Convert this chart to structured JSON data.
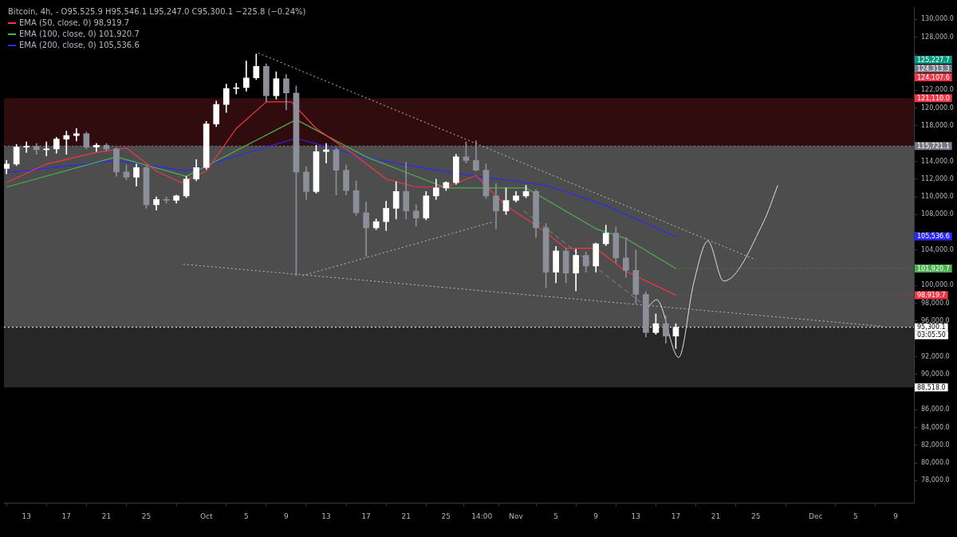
{
  "chart_data": {
    "type": "candlestick",
    "title": "Bitcoin, 4h, -",
    "subtitle": "O95,525.9 H95,546.1 L95,247.0 C95,300.1 −225.8 (−0.24%)",
    "xlim": [
      "--09-10T18:00",
      "--12-10T20:00"
    ],
    "xticks": [
      {
        "value": "--09-13",
        "label": "13"
      },
      {
        "value": "--09-17",
        "label": "17"
      },
      {
        "value": "--09-21",
        "label": "21"
      },
      {
        "value": "--09-25",
        "label": "25"
      },
      {
        "value": "--10-01",
        "label": "Oct"
      },
      {
        "value": "--10-05",
        "label": "5"
      },
      {
        "value": "--10-09",
        "label": "9"
      },
      {
        "value": "--10-13",
        "label": "13"
      },
      {
        "value": "--10-17",
        "label": "17"
      },
      {
        "value": "--10-21",
        "label": "21"
      },
      {
        "value": "--10-25",
        "label": "25"
      },
      {
        "value": "--10-28T14:00",
        "label": "14:00"
      },
      {
        "value": "--11-01",
        "label": "Nov"
      },
      {
        "value": "--11-05",
        "label": "5"
      },
      {
        "value": "--11-09",
        "label": "9"
      },
      {
        "value": "--11-13",
        "label": "13"
      },
      {
        "value": "--11-17",
        "label": "17"
      },
      {
        "value": "--11-21",
        "label": "21"
      },
      {
        "value": "--11-25",
        "label": "25"
      },
      {
        "value": "--12-01",
        "label": "Dec"
      },
      {
        "value": "--12-05",
        "label": "5"
      },
      {
        "value": "--12-09",
        "label": "9"
      }
    ],
    "ylim": [
      75500,
      131300
    ],
    "yticks": [
      {
        "value": 78000,
        "label": "78,000.0"
      },
      {
        "value": 80000,
        "label": "80,000.0"
      },
      {
        "value": 82000,
        "label": "82,000.0"
      },
      {
        "value": 84000,
        "label": "84,000.0"
      },
      {
        "value": 86000,
        "label": "86,000.0"
      },
      {
        "value": 88000,
        "label": null
      },
      {
        "value": 90000,
        "label": "90,000.0"
      },
      {
        "value": 92000,
        "label": "92,000.0"
      },
      {
        "value": 94000,
        "label": null
      },
      {
        "value": 96000,
        "label": "96,000.0"
      },
      {
        "value": 98000,
        "label": "98,000.0"
      },
      {
        "value": 100000,
        "label": "100,000.0"
      },
      {
        "value": 102000,
        "label": null
      },
      {
        "value": 104000,
        "label": "104,000.0"
      },
      {
        "value": 106000,
        "label": null
      },
      {
        "value": 108000,
        "label": "108,000.0"
      },
      {
        "value": 110000,
        "label": "110,000.0"
      },
      {
        "value": 112000,
        "label": "112,000.0"
      },
      {
        "value": 114000,
        "label": "114,000.0"
      },
      {
        "value": 116000,
        "label": null
      },
      {
        "value": 118000,
        "label": "118,000.0"
      },
      {
        "value": 120000,
        "label": "120,000.0"
      },
      {
        "value": 122000,
        "label": "122,000.0"
      },
      {
        "value": 124000,
        "label": null
      },
      {
        "value": 126000,
        "label": null
      },
      {
        "value": 128000,
        "label": "128,000.0"
      },
      {
        "value": 130000,
        "label": "130,000.0"
      }
    ],
    "grid": false,
    "legend": "top left",
    "bands": [
      {
        "axis": "y",
        "from": 121110,
        "to": 115721.1,
        "label": "121,110.0",
        "color": "#3a0e11"
      },
      {
        "axis": "y",
        "from": 115721.1,
        "to": 95300.1,
        "label": null,
        "color": "#5a5a5a"
      },
      {
        "axis": "y",
        "from": 88518,
        "to": 95300.1,
        "label": "88,518.0",
        "color": "#2e2e2e"
      }
    ],
    "ref_lines": [
      {
        "axis": "y",
        "value": 115721.1,
        "label": "115,721.1",
        "color": "#787b86",
        "line_style": "dotted"
      },
      {
        "axis": "y",
        "value": 95300.1,
        "label": "95,300.1",
        "color": "#ffffff",
        "line_style": "dotted"
      }
    ],
    "annotations": [
      "03:05:50",
      "125,227.7",
      "124,313.3",
      "124,107.6",
      {
        "text": "98,919.7",
        "x": "--11-17",
        "y": 98919.7
      },
      {
        "text": "101,920.7",
        "x": "--11-17",
        "y": 101920.7
      },
      {
        "text": "105,536.6",
        "x": "--11-17",
        "y": 105536.6
      }
    ],
    "series": [
      {
        "colors": [
          "#ffffff",
          "#ffffff",
          "#ffffff",
          "#8c8f99",
          "#ffffff",
          "#ffffff",
          "#ffffff",
          "#ffffff",
          "#8c8f99",
          "#ffffff",
          "#8c8f99",
          "#8c8f99",
          "#8c8f99",
          "#ffffff",
          "#8c8f99",
          "#ffffff",
          "#8c8f99",
          "#ffffff",
          "#ffffff",
          "#ffffff",
          "#ffffff",
          "#ffffff",
          "#ffffff",
          "#ffffff",
          "#ffffff",
          "#ffffff",
          "#8c8f99",
          "#ffffff",
          "#8c8f99",
          "#8c8f99",
          "#8c8f99",
          "#ffffff",
          "#ffffff",
          "#8c8f99",
          "#8c8f99",
          "#8c8f99",
          "#8c8f99",
          "#ffffff",
          "#ffffff",
          "#ffffff",
          "#8c8f99",
          "#8c8f99",
          "#ffffff",
          "#ffffff",
          "#ffffff",
          "#ffffff",
          "#8c8f99",
          "#8c8f99",
          "#8c8f99",
          "#8c8f99",
          "#ffffff",
          "#ffffff",
          "#ffffff",
          "#8c8f99",
          "#8c8f99",
          "#ffffff",
          "#8c8f99",
          "#ffffff",
          "#8c8f99",
          "#ffffff",
          "#ffffff",
          "#8c8f99",
          "#8c8f99",
          "#8c8f99",
          "#8c8f99",
          "#ffffff",
          "#8c8f99",
          "#ffffff"
        ],
        "x": [
          "--09-11",
          "--09-12",
          "--09-13",
          "--09-14",
          "--09-15",
          "--09-16",
          "--09-17",
          "--09-18",
          "--09-19",
          "--09-20",
          "--09-21",
          "--09-22",
          "--09-23",
          "--09-24",
          "--09-25",
          "--09-26",
          "--09-27",
          "--09-28",
          "--09-29",
          "--09-30",
          "--10-01",
          "--10-02",
          "--10-03",
          "--10-04",
          "--10-05",
          "--10-06",
          "--10-07",
          "--10-08",
          "--10-09",
          "--10-10",
          "--10-11",
          "--10-12",
          "--10-13",
          "--10-14",
          "--10-15",
          "--10-16",
          "--10-17",
          "--10-18",
          "--10-19",
          "--10-20",
          "--10-21",
          "--10-22",
          "--10-23",
          "--10-24",
          "--10-25",
          "--10-26",
          "--10-27",
          "--10-28",
          "--10-29",
          "--10-30",
          "--10-31",
          "--11-01",
          "--11-02",
          "--11-03",
          "--11-04",
          "--11-05",
          "--11-06",
          "--11-07",
          "--11-08",
          "--11-09",
          "--11-10",
          "--11-11",
          "--11-12",
          "--11-13",
          "--11-14",
          "--11-15",
          "--11-16",
          "--11-17"
        ],
        "ohlc": [
          [
            113200,
            114100,
            112600,
            113700
          ],
          [
            113700,
            115900,
            113500,
            115600
          ],
          [
            115600,
            116200,
            115000,
            115700
          ],
          [
            115700,
            116000,
            114800,
            115300
          ],
          [
            115300,
            116200,
            114600,
            115400
          ],
          [
            115400,
            116700,
            114900,
            116500
          ],
          [
            116500,
            117400,
            114800,
            116900
          ],
          [
            116900,
            117700,
            116300,
            117100
          ],
          [
            117100,
            117300,
            115400,
            115600
          ],
          [
            115600,
            116000,
            115100,
            115800
          ],
          [
            115800,
            116000,
            115200,
            115400
          ],
          [
            115400,
            115500,
            112300,
            112800
          ],
          [
            112800,
            113600,
            111900,
            112200
          ],
          [
            112200,
            113700,
            111200,
            113300
          ],
          [
            113300,
            113500,
            108700,
            109100
          ],
          [
            109100,
            110000,
            108500,
            109700
          ],
          [
            109700,
            110000,
            109300,
            109600
          ],
          [
            109600,
            110200,
            109300,
            110100
          ],
          [
            110100,
            112300,
            109900,
            112000
          ],
          [
            112000,
            114200,
            111800,
            113300
          ],
          [
            113300,
            118500,
            113100,
            118200
          ],
          [
            118200,
            120800,
            117900,
            120400
          ],
          [
            120400,
            122700,
            119500,
            122200
          ],
          [
            122200,
            122800,
            121600,
            122300
          ],
          [
            122300,
            125300,
            121900,
            123400
          ],
          [
            123400,
            126100,
            123200,
            124700
          ],
          [
            124700,
            125000,
            120700,
            121400
          ],
          [
            121400,
            124100,
            121000,
            123300
          ],
          [
            123300,
            123800,
            119800,
            121700
          ],
          [
            121700,
            122500,
            101100,
            112800
          ],
          [
            112800,
            113400,
            109700,
            110600
          ],
          [
            110600,
            115800,
            110400,
            115100
          ],
          [
            115100,
            116000,
            113800,
            115300
          ],
          [
            115300,
            115500,
            110200,
            113000
          ],
          [
            113000,
            113600,
            110200,
            110700
          ],
          [
            110700,
            111800,
            107900,
            108200
          ],
          [
            108200,
            109400,
            103300,
            106500
          ],
          [
            106500,
            107500,
            106300,
            107200
          ],
          [
            107200,
            109500,
            106200,
            108700
          ],
          [
            108700,
            111700,
            107500,
            110600
          ],
          [
            110600,
            113900,
            107500,
            108400
          ],
          [
            108400,
            109100,
            106700,
            107600
          ],
          [
            107600,
            110600,
            107400,
            110100
          ],
          [
            110100,
            112000,
            109700,
            111000
          ],
          [
            111000,
            111700,
            110700,
            111600
          ],
          [
            111600,
            114800,
            111400,
            114500
          ],
          [
            114500,
            116200,
            113800,
            114100
          ],
          [
            114100,
            116300,
            112900,
            113000
          ],
          [
            113000,
            113700,
            109800,
            110100
          ],
          [
            110100,
            111500,
            106400,
            108400
          ],
          [
            108400,
            111000,
            108000,
            109600
          ],
          [
            109600,
            110600,
            109400,
            110100
          ],
          [
            110100,
            111300,
            109900,
            110600
          ],
          [
            110600,
            110800,
            105400,
            106500
          ],
          [
            106500,
            107000,
            99800,
            101500
          ],
          [
            101500,
            104400,
            100300,
            103900
          ],
          [
            103900,
            104200,
            100300,
            101400
          ],
          [
            101400,
            104100,
            99400,
            103400
          ],
          [
            103400,
            103800,
            101500,
            102200
          ],
          [
            102200,
            104800,
            101500,
            104700
          ],
          [
            104700,
            106800,
            104500,
            105900
          ],
          [
            105900,
            106600,
            102600,
            103100
          ],
          [
            103100,
            105400,
            100900,
            101700
          ],
          [
            101700,
            104000,
            98000,
            99000
          ],
          [
            99000,
            99300,
            94200,
            94700
          ],
          [
            94700,
            96800,
            94500,
            95700
          ],
          [
            95700,
            96600,
            93500,
            94300
          ],
          [
            94300,
            95700,
            92900,
            95300.1
          ]
        ]
      },
      {
        "type": "line",
        "name": "EMA (50, close, 0) 98,919.7",
        "color": "#f23645",
        "x": [
          "--09-11",
          "--09-15",
          "--09-20",
          "--09-23",
          "--09-26",
          "--09-28T12:00",
          "--10-01",
          "--10-04",
          "--10-07",
          "--10-09T12:00",
          "--10-12",
          "--10-16",
          "--10-19",
          "--10-22",
          "--10-25",
          "--10-28",
          "--10-31",
          "--11-03",
          "--11-06",
          "--11-09",
          "--11-12",
          "--11-17"
        ],
        "values": [
          111600,
          113700,
          115000,
          115500,
          112900,
          111600,
          112900,
          117700,
          120700,
          120700,
          117700,
          114600,
          112000,
          111100,
          111100,
          112400,
          109000,
          106800,
          104200,
          104200,
          101600,
          98919.7
        ]
      },
      {
        "type": "line",
        "name": "EMA (100, close, 0) 101,920.7",
        "color": "#4caf50",
        "x": [
          "--09-11",
          "--09-22",
          "--09-29",
          "--10-10",
          "--10-14",
          "--10-17",
          "--10-25",
          "--11-02",
          "--11-09",
          "--11-12",
          "--11-17"
        ],
        "values": [
          111100,
          114500,
          112300,
          118700,
          116300,
          114500,
          111000,
          111000,
          106400,
          105300,
          101920.7
        ]
      },
      {
        "type": "line",
        "name": "EMA (200, close, 0) 105,536.6",
        "color": "#2929ff",
        "x": [
          "--09-11",
          "--09-22",
          "--09-29",
          "--10-10",
          "--10-17",
          "--10-25T12:00",
          "--11-04",
          "--11-10",
          "--11-17"
        ],
        "values": [
          112700,
          114100,
          112900,
          116600,
          114400,
          112700,
          111300,
          109000,
          105536.6
        ]
      },
      {
        "type": "line",
        "color": "#bbbbbb",
        "line_style": "dotted",
        "x": [
          "--10-06T05:00",
          "--11-25"
        ],
        "values": [
          126200,
          102900
        ]
      },
      {
        "type": "line",
        "color": "#bbbbbb",
        "line_style": "dotted",
        "x": [
          "--09-28T17:00",
          "--12-07T17:00"
        ],
        "values": [
          102400,
          95400
        ]
      },
      {
        "type": "line",
        "color": "#bbbbbb",
        "line_style": "dotted",
        "x": [
          "--10-10T14:00",
          "--10-29T19:00"
        ],
        "values": [
          101100,
          107200
        ]
      },
      {
        "type": "line",
        "color": "#8a8a8a",
        "line_style": "dashed",
        "x": [
          "--11-01T19:00",
          "--11-13T12:00"
        ],
        "values": [
          108400,
          98100
        ]
      },
      {
        "type": "line",
        "color": "#e0e0e0",
        "line_style": "solid",
        "x": [
          "--11-13T18:00",
          "--11-15T02:00",
          "--11-17T07:00",
          "--11-18T19:00",
          "--11-20T05:00",
          "--11-21T19:00",
          "--11-25T19:00",
          "--11-27T05:00"
        ],
        "values": [
          96800,
          98400,
          91900,
          100300,
          105000,
          100500,
          107200,
          111300
        ]
      }
    ]
  }
}
